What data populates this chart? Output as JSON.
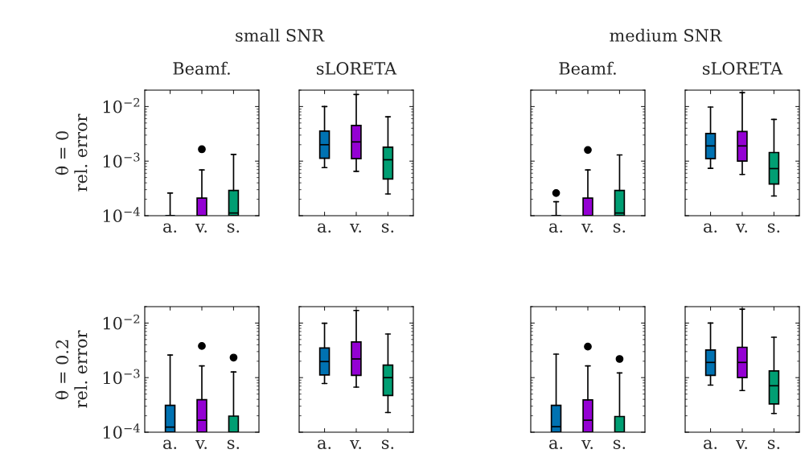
{
  "chart_data": [
    {
      "type": "box",
      "title": "Beamf.",
      "ylabel": "θ = 0\nrel. error",
      "annotations": [
        "small SNR"
      ],
      "categories": [
        "a.",
        "v.",
        "s."
      ],
      "colors": [
        "#0072b2",
        "#9400d3",
        "#009e73"
      ],
      "log": true,
      "ylim": [
        0.0001,
        0.02
      ],
      "yticks": [
        {
          "value": 0.0001,
          "label": "10$^{−4}$"
        },
        {
          "value": 0.001,
          "label": "10$^{−3}$"
        },
        {
          "value": 0.01,
          "label": "10$^{−2}$"
        }
      ],
      "boxes": [
        {
          "low": 0.0001,
          "q1": 0.0001,
          "median": 0.0001,
          "q3": 0.0001,
          "high": 0.00026
        },
        {
          "low": 0.0001,
          "q1": 0.0001,
          "median": 0.0001,
          "q3": 0.00021,
          "high": 0.00069,
          "outliers": [
            0.00165
          ]
        },
        {
          "low": 0.0001,
          "q1": 0.0001,
          "median": 0.000112,
          "q3": 0.00029,
          "high": 0.00133
        }
      ]
    },
    {
      "type": "box",
      "title": "sLORETA",
      "categories": [
        "a.",
        "v.",
        "s."
      ],
      "colors": [
        "#0072b2",
        "#9400d3",
        "#009e73"
      ],
      "log": true,
      "ylim": [
        0.0001,
        0.02
      ],
      "yticks": [
        {
          "value": 0.0001,
          "label": null
        },
        {
          "value": 0.001,
          "label": null
        },
        {
          "value": 0.01,
          "label": null
        }
      ],
      "tick_labels": "x",
      "boxes": [
        {
          "low": 0.00076,
          "q1": 0.00113,
          "median": 0.002,
          "q3": 0.00356,
          "high": 0.01
        },
        {
          "low": 0.00065,
          "q1": 0.00111,
          "median": 0.00225,
          "q3": 0.0045,
          "high": 0.0167
        },
        {
          "low": 0.00025,
          "q1": 0.00047,
          "median": 0.00106,
          "q3": 0.0018,
          "high": 0.0065
        }
      ]
    },
    {
      "type": "box",
      "title": "Beamf.",
      "annotations": [
        "medium SNR"
      ],
      "categories": [
        "a.",
        "v.",
        "s."
      ],
      "colors": [
        "#0072b2",
        "#9400d3",
        "#009e73"
      ],
      "log": true,
      "ylim": [
        0.0001,
        0.02
      ],
      "yticks": [
        {
          "value": 0.0001,
          "label": null
        },
        {
          "value": 0.001,
          "label": null
        },
        {
          "value": 0.01,
          "label": null
        }
      ],
      "tick_labels": "x",
      "boxes": [
        {
          "low": 0.0001,
          "q1": 0.0001,
          "median": 0.0001,
          "q3": 0.0001,
          "high": 0.00018,
          "outliers": [
            0.00026
          ]
        },
        {
          "low": 0.0001,
          "q1": 0.0001,
          "median": 0.0001,
          "q3": 0.00021,
          "high": 0.00069,
          "outliers": [
            0.0016
          ]
        },
        {
          "low": 0.0001,
          "q1": 0.0001,
          "median": 0.000112,
          "q3": 0.00029,
          "high": 0.0013
        }
      ]
    },
    {
      "type": "box",
      "title": "sLORETA",
      "categories": [
        "a.",
        "v.",
        "s."
      ],
      "colors": [
        "#0072b2",
        "#9400d3",
        "#009e73"
      ],
      "log": true,
      "ylim": [
        0.0001,
        0.02
      ],
      "yticks": [
        {
          "value": 0.0001,
          "label": null
        },
        {
          "value": 0.001,
          "label": null
        },
        {
          "value": 0.01,
          "label": null
        }
      ],
      "tick_labels": "x",
      "boxes": [
        {
          "low": 0.00074,
          "q1": 0.00111,
          "median": 0.0019,
          "q3": 0.0032,
          "high": 0.0098
        },
        {
          "low": 0.00057,
          "q1": 0.001,
          "median": 0.0019,
          "q3": 0.0035,
          "high": 0.018
        },
        {
          "low": 0.00023,
          "q1": 0.00038,
          "median": 0.00073,
          "q3": 0.00144,
          "high": 0.0058
        }
      ]
    },
    {
      "type": "box",
      "ylabel": "θ = 0.2\nrel. error",
      "categories": [
        "a.",
        "v.",
        "s."
      ],
      "colors": [
        "#0072b2",
        "#9400d3",
        "#009e73"
      ],
      "log": true,
      "ylim": [
        0.0001,
        0.02
      ],
      "yticks": [
        {
          "value": 0.0001,
          "label": "10$^{−4}$"
        },
        {
          "value": 0.001,
          "label": "10$^{−3}$"
        },
        {
          "value": 0.01,
          "label": "10$^{−2}$"
        }
      ],
      "boxes": [
        {
          "low": 0.0001,
          "q1": 0.0001,
          "median": 0.000124,
          "q3": 0.00031,
          "high": 0.0026
        },
        {
          "low": 0.0001,
          "q1": 0.0001,
          "median": 0.000166,
          "q3": 0.000395,
          "high": 0.00164,
          "outliers": [
            0.0038
          ]
        },
        {
          "low": 0.0001,
          "q1": 0.0001,
          "median": 0.0001,
          "q3": 0.000197,
          "high": 0.00127,
          "outliers": [
            0.00233
          ]
        }
      ]
    },
    {
      "type": "box",
      "categories": [
        "a.",
        "v.",
        "s."
      ],
      "colors": [
        "#0072b2",
        "#9400d3",
        "#009e73"
      ],
      "log": true,
      "ylim": [
        0.0001,
        0.02
      ],
      "yticks": [
        {
          "value": 0.0001,
          "label": null
        },
        {
          "value": 0.001,
          "label": null
        },
        {
          "value": 0.01,
          "label": null
        }
      ],
      "tick_labels": "x",
      "boxes": [
        {
          "low": 0.00078,
          "q1": 0.00112,
          "median": 0.00197,
          "q3": 0.0035,
          "high": 0.0099
        },
        {
          "low": 0.00067,
          "q1": 0.0011,
          "median": 0.0022,
          "q3": 0.0045,
          "high": 0.017
        },
        {
          "low": 0.00023,
          "q1": 0.00047,
          "median": 0.001,
          "q3": 0.0017,
          "high": 0.0063
        }
      ]
    },
    {
      "type": "box",
      "categories": [
        "a.",
        "v.",
        "s."
      ],
      "colors": [
        "#0072b2",
        "#9400d3",
        "#009e73"
      ],
      "log": true,
      "ylim": [
        0.0001,
        0.02
      ],
      "yticks": [
        {
          "value": 0.0001,
          "label": null
        },
        {
          "value": 0.001,
          "label": null
        },
        {
          "value": 0.01,
          "label": null
        }
      ],
      "tick_labels": "x",
      "boxes": [
        {
          "low": 0.0001,
          "q1": 0.0001,
          "median": 0.000126,
          "q3": 0.00031,
          "high": 0.0027
        },
        {
          "low": 0.0001,
          "q1": 0.0001,
          "median": 0.000166,
          "q3": 0.00039,
          "high": 0.00164,
          "outliers": [
            0.0037
          ]
        },
        {
          "low": 0.0001,
          "q1": 0.0001,
          "median": 0.0001,
          "q3": 0.000194,
          "high": 0.00122,
          "outliers": [
            0.0022
          ]
        }
      ]
    },
    {
      "type": "box",
      "categories": [
        "a.",
        "v.",
        "s."
      ],
      "colors": [
        "#0072b2",
        "#9400d3",
        "#009e73"
      ],
      "log": true,
      "ylim": [
        0.0001,
        0.02
      ],
      "yticks": [
        {
          "value": 0.0001,
          "label": null
        },
        {
          "value": 0.001,
          "label": null
        },
        {
          "value": 0.01,
          "label": null
        }
      ],
      "tick_labels": "x",
      "boxes": [
        {
          "low": 0.00073,
          "q1": 0.0011,
          "median": 0.0019,
          "q3": 0.0032,
          "high": 0.01
        },
        {
          "low": 0.00058,
          "q1": 0.001,
          "median": 0.0019,
          "q3": 0.0036,
          "high": 0.018
        },
        {
          "low": 0.00022,
          "q1": 0.00033,
          "median": 0.00071,
          "q3": 0.00133,
          "high": 0.0055
        }
      ]
    }
  ]
}
